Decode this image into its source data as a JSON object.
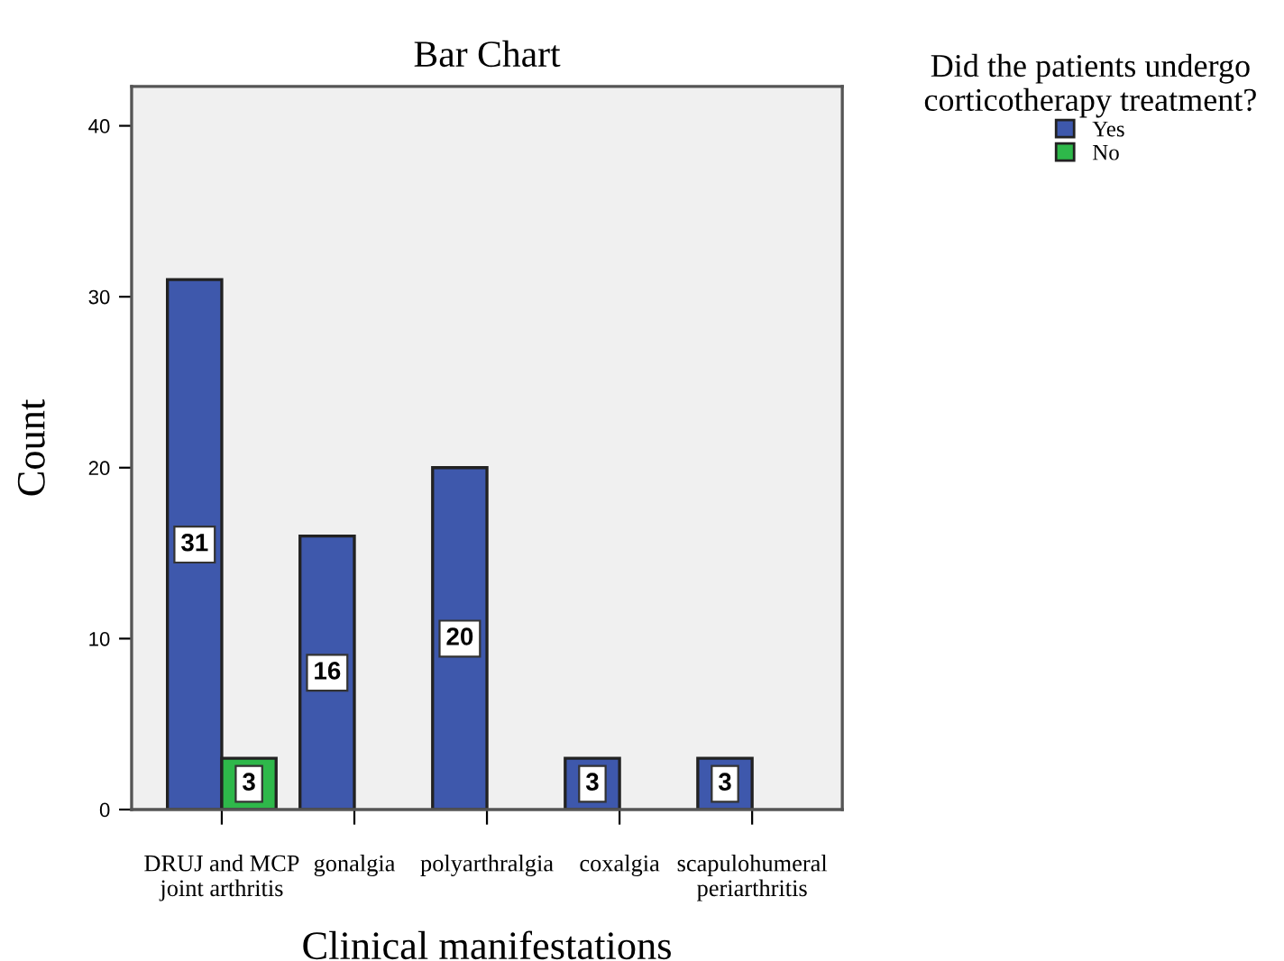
{
  "chart_data": {
    "type": "bar",
    "title": "Bar Chart",
    "xlabel": "Clinical manifestations",
    "ylabel": "Count",
    "legend_title": "Did the patients undergo\ncorticotherapy treatment?",
    "categories": [
      "DRUJ and MCP\njoint arthritis",
      "gonalgia",
      "polyarthralgia",
      "coxalgia",
      "scapulohumeral\nperiarthritis"
    ],
    "series": [
      {
        "name": "Yes",
        "color": "#3e58ac",
        "values": [
          31,
          16,
          20,
          3,
          3
        ]
      },
      {
        "name": "No",
        "color": "#2eb84a",
        "values": [
          3,
          null,
          null,
          null,
          null
        ]
      }
    ],
    "ylim": [
      0,
      42.3
    ],
    "yticks": [
      0,
      10,
      20,
      30,
      40
    ],
    "data_labels": true,
    "legend": "top right",
    "grid": false
  }
}
